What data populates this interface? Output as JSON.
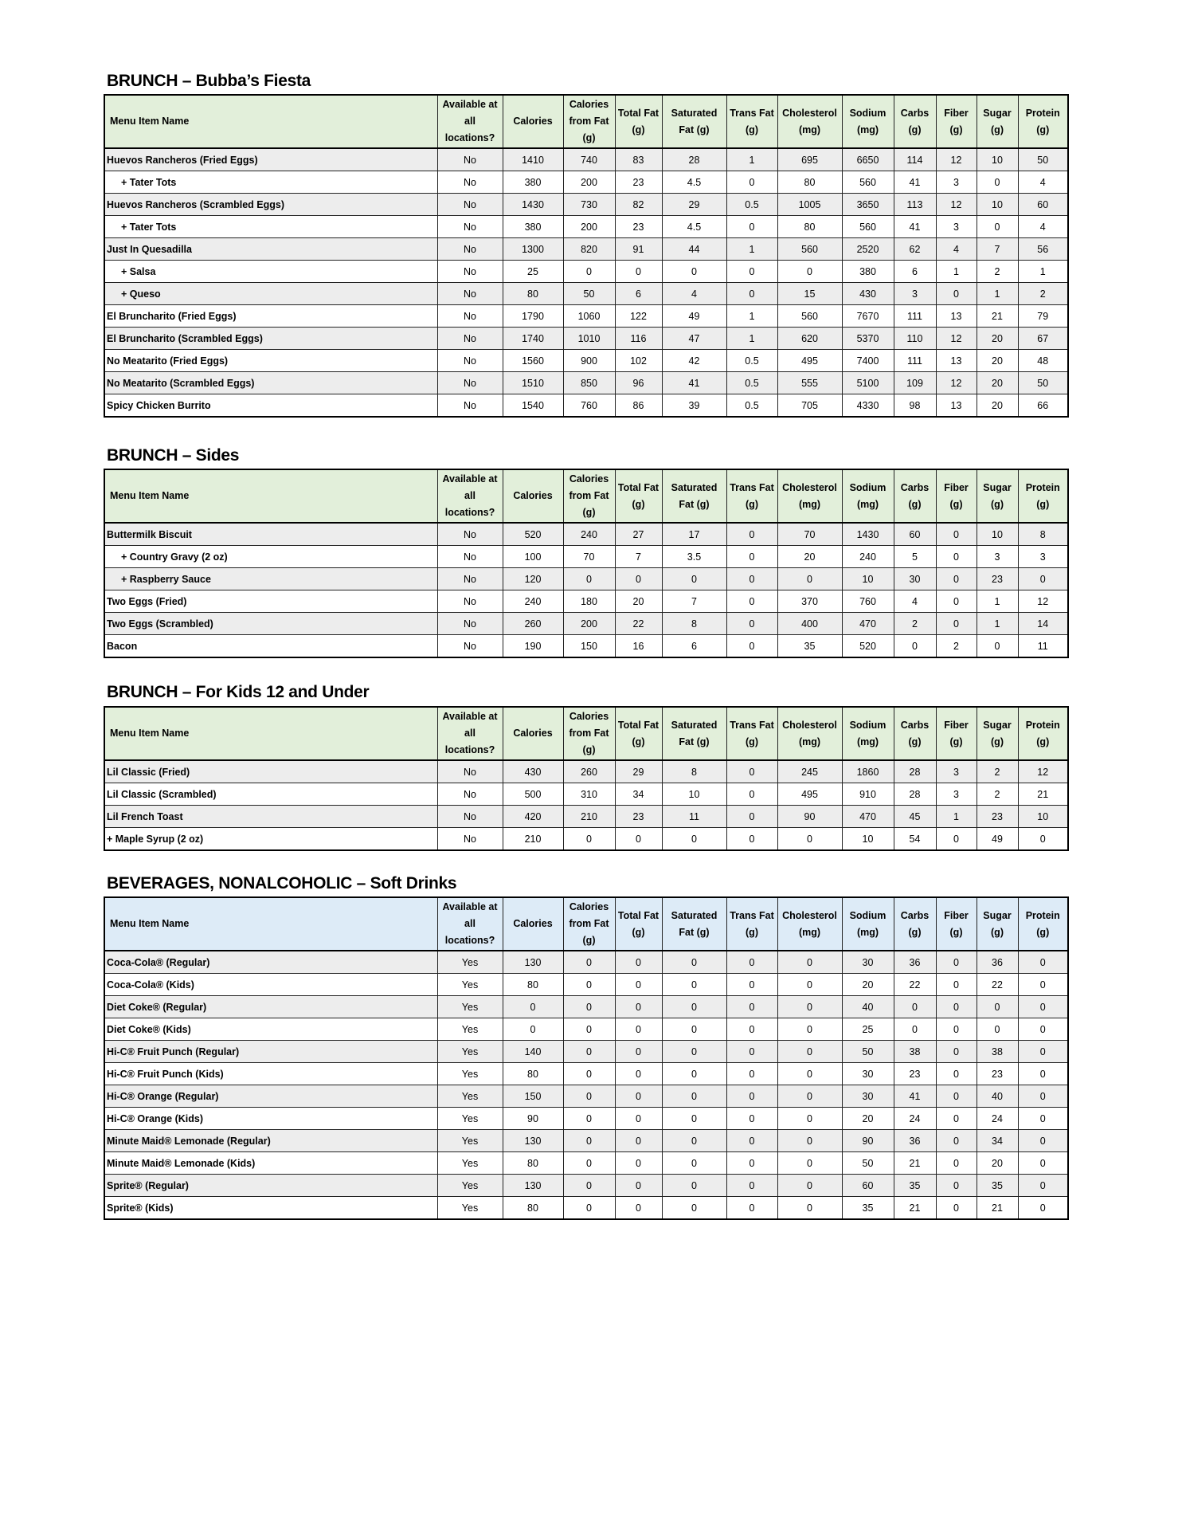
{
  "columns": [
    "Menu Item Name",
    "Available at all locations?",
    "Calories",
    "Calories from Fat (g)",
    "Total Fat (g)",
    "Saturated Fat (g)",
    "Trans Fat (g)",
    "Cholesterol (mg)",
    "Sodium (mg)",
    "Carbs (g)",
    "Fiber (g)",
    "Sugar (g)",
    "Protein (g)"
  ],
  "colors": {
    "brunch_header": "#e2efda",
    "beverage_header": "#ddebf7",
    "alt_row": "#ededed"
  },
  "sections": [
    {
      "title": "BRUNCH – Bubba’s Fiesta",
      "header_color": "#e2efda",
      "rows": [
        {
          "name": "Huevos Rancheros (Fried Eggs)",
          "sub_item": false,
          "values": [
            "No",
            "1410",
            "740",
            "83",
            "28",
            "1",
            "695",
            "6650",
            "114",
            "12",
            "10",
            "50"
          ]
        },
        {
          "name": "+ Tater Tots",
          "sub_item": true,
          "values": [
            "No",
            "380",
            "200",
            "23",
            "4.5",
            "0",
            "80",
            "560",
            "41",
            "3",
            "0",
            "4"
          ]
        },
        {
          "name": "Huevos Rancheros (Scrambled Eggs)",
          "sub_item": false,
          "values": [
            "No",
            "1430",
            "730",
            "82",
            "29",
            "0.5",
            "1005",
            "3650",
            "113",
            "12",
            "10",
            "60"
          ]
        },
        {
          "name": "+ Tater Tots",
          "sub_item": true,
          "values": [
            "No",
            "380",
            "200",
            "23",
            "4.5",
            "0",
            "80",
            "560",
            "41",
            "3",
            "0",
            "4"
          ]
        },
        {
          "name": "Just In Quesadilla",
          "sub_item": false,
          "values": [
            "No",
            "1300",
            "820",
            "91",
            "44",
            "1",
            "560",
            "2520",
            "62",
            "4",
            "7",
            "56"
          ]
        },
        {
          "name": "+ Salsa",
          "sub_item": true,
          "values": [
            "No",
            "25",
            "0",
            "0",
            "0",
            "0",
            "0",
            "380",
            "6",
            "1",
            "2",
            "1"
          ]
        },
        {
          "name": "+ Queso",
          "sub_item": true,
          "values": [
            "No",
            "80",
            "50",
            "6",
            "4",
            "0",
            "15",
            "430",
            "3",
            "0",
            "1",
            "2"
          ]
        },
        {
          "name": "El Bruncharito (Fried Eggs)",
          "sub_item": false,
          "values": [
            "No",
            "1790",
            "1060",
            "122",
            "49",
            "1",
            "560",
            "7670",
            "111",
            "13",
            "21",
            "79"
          ]
        },
        {
          "name": "El Bruncharito (Scrambled Eggs)",
          "sub_item": false,
          "values": [
            "No",
            "1740",
            "1010",
            "116",
            "47",
            "1",
            "620",
            "5370",
            "110",
            "12",
            "20",
            "67"
          ]
        },
        {
          "name": "No Meatarito (Fried Eggs)",
          "sub_item": false,
          "values": [
            "No",
            "1560",
            "900",
            "102",
            "42",
            "0.5",
            "495",
            "7400",
            "111",
            "13",
            "20",
            "48"
          ]
        },
        {
          "name": "No Meatarito (Scrambled Eggs)",
          "sub_item": false,
          "values": [
            "No",
            "1510",
            "850",
            "96",
            "41",
            "0.5",
            "555",
            "5100",
            "109",
            "12",
            "20",
            "50"
          ]
        },
        {
          "name": "Spicy Chicken Burrito",
          "sub_item": false,
          "values": [
            "No",
            "1540",
            "760",
            "86",
            "39",
            "0.5",
            "705",
            "4330",
            "98",
            "13",
            "20",
            "66"
          ]
        }
      ]
    },
    {
      "title": "BRUNCH – Sides",
      "header_color": "#e2efda",
      "rows": [
        {
          "name": "Buttermilk Biscuit",
          "sub_item": false,
          "values": [
            "No",
            "520",
            "240",
            "27",
            "17",
            "0",
            "70",
            "1430",
            "60",
            "0",
            "10",
            "8"
          ]
        },
        {
          "name": "+ Country Gravy (2 oz)",
          "sub_item": true,
          "values": [
            "No",
            "100",
            "70",
            "7",
            "3.5",
            "0",
            "20",
            "240",
            "5",
            "0",
            "3",
            "3"
          ]
        },
        {
          "name": "+ Raspberry Sauce",
          "sub_item": true,
          "values": [
            "No",
            "120",
            "0",
            "0",
            "0",
            "0",
            "0",
            "10",
            "30",
            "0",
            "23",
            "0"
          ]
        },
        {
          "name": "Two Eggs (Fried)",
          "sub_item": false,
          "values": [
            "No",
            "240",
            "180",
            "20",
            "7",
            "0",
            "370",
            "760",
            "4",
            "0",
            "1",
            "12"
          ]
        },
        {
          "name": "Two Eggs (Scrambled)",
          "sub_item": false,
          "values": [
            "No",
            "260",
            "200",
            "22",
            "8",
            "0",
            "400",
            "470",
            "2",
            "0",
            "1",
            "14"
          ]
        },
        {
          "name": "Bacon",
          "sub_item": false,
          "values": [
            "No",
            "190",
            "150",
            "16",
            "6",
            "0",
            "35",
            "520",
            "0",
            "2",
            "0",
            "11"
          ]
        }
      ]
    },
    {
      "title": "BRUNCH – For Kids 12 and Under",
      "header_color": "#e2efda",
      "rows": [
        {
          "name": "Lil Classic (Fried)",
          "sub_item": false,
          "values": [
            "No",
            "430",
            "260",
            "29",
            "8",
            "0",
            "245",
            "1860",
            "28",
            "3",
            "2",
            "12"
          ]
        },
        {
          "name": "Lil Classic (Scrambled)",
          "sub_item": false,
          "values": [
            "No",
            "500",
            "310",
            "34",
            "10",
            "0",
            "495",
            "910",
            "28",
            "3",
            "2",
            "21"
          ]
        },
        {
          "name": "Lil French Toast",
          "sub_item": false,
          "values": [
            "No",
            "420",
            "210",
            "23",
            "11",
            "0",
            "90",
            "470",
            "45",
            "1",
            "23",
            "10"
          ]
        },
        {
          "name": "+ Maple Syrup (2 oz)",
          "sub_item": false,
          "values": [
            "No",
            "210",
            "0",
            "0",
            "0",
            "0",
            "0",
            "10",
            "54",
            "0",
            "49",
            "0"
          ]
        }
      ]
    },
    {
      "title": "BEVERAGES, NONALCOHOLIC – Soft Drinks",
      "header_color": "#ddebf7",
      "rows": [
        {
          "name": "Coca-Cola® (Regular)",
          "sub_item": false,
          "values": [
            "Yes",
            "130",
            "0",
            "0",
            "0",
            "0",
            "0",
            "30",
            "36",
            "0",
            "36",
            "0"
          ]
        },
        {
          "name": "Coca-Cola® (Kids)",
          "sub_item": false,
          "values": [
            "Yes",
            "80",
            "0",
            "0",
            "0",
            "0",
            "0",
            "20",
            "22",
            "0",
            "22",
            "0"
          ]
        },
        {
          "name": "Diet Coke® (Regular)",
          "sub_item": false,
          "values": [
            "Yes",
            "0",
            "0",
            "0",
            "0",
            "0",
            "0",
            "40",
            "0",
            "0",
            "0",
            "0"
          ]
        },
        {
          "name": "Diet Coke® (Kids)",
          "sub_item": false,
          "values": [
            "Yes",
            "0",
            "0",
            "0",
            "0",
            "0",
            "0",
            "25",
            "0",
            "0",
            "0",
            "0"
          ]
        },
        {
          "name": "Hi-C® Fruit Punch (Regular)",
          "sub_item": false,
          "values": [
            "Yes",
            "140",
            "0",
            "0",
            "0",
            "0",
            "0",
            "50",
            "38",
            "0",
            "38",
            "0"
          ]
        },
        {
          "name": "Hi-C® Fruit Punch (Kids)",
          "sub_item": false,
          "values": [
            "Yes",
            "80",
            "0",
            "0",
            "0",
            "0",
            "0",
            "30",
            "23",
            "0",
            "23",
            "0"
          ]
        },
        {
          "name": "Hi-C® Orange (Regular)",
          "sub_item": false,
          "values": [
            "Yes",
            "150",
            "0",
            "0",
            "0",
            "0",
            "0",
            "30",
            "41",
            "0",
            "40",
            "0"
          ]
        },
        {
          "name": "Hi-C® Orange (Kids)",
          "sub_item": false,
          "values": [
            "Yes",
            "90",
            "0",
            "0",
            "0",
            "0",
            "0",
            "20",
            "24",
            "0",
            "24",
            "0"
          ]
        },
        {
          "name": "Minute Maid® Lemonade (Regular)",
          "sub_item": false,
          "values": [
            "Yes",
            "130",
            "0",
            "0",
            "0",
            "0",
            "0",
            "90",
            "36",
            "0",
            "34",
            "0"
          ]
        },
        {
          "name": "Minute Maid® Lemonade (Kids)",
          "sub_item": false,
          "values": [
            "Yes",
            "80",
            "0",
            "0",
            "0",
            "0",
            "0",
            "50",
            "21",
            "0",
            "20",
            "0"
          ]
        },
        {
          "name": "Sprite® (Regular)",
          "sub_item": false,
          "values": [
            "Yes",
            "130",
            "0",
            "0",
            "0",
            "0",
            "0",
            "60",
            "35",
            "0",
            "35",
            "0"
          ]
        },
        {
          "name": "Sprite® (Kids)",
          "sub_item": false,
          "values": [
            "Yes",
            "80",
            "0",
            "0",
            "0",
            "0",
            "0",
            "35",
            "21",
            "0",
            "21",
            "0"
          ]
        }
      ]
    }
  ]
}
